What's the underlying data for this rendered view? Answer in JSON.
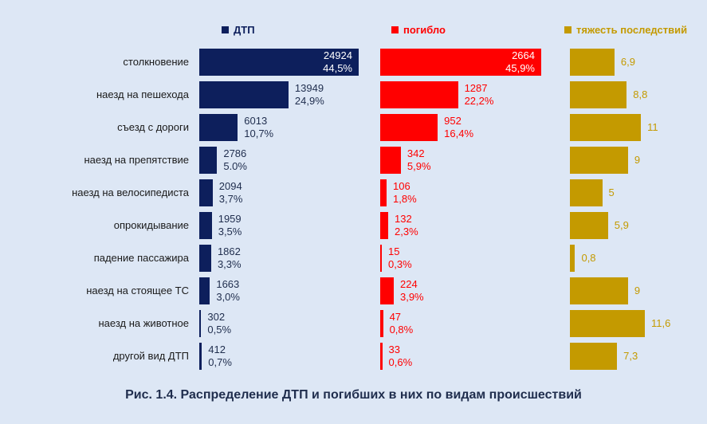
{
  "caption": "Рис. 1.4. Распределение ДТП и погибших в них по видам происшествий",
  "chart_data": {
    "type": "bar",
    "orientation": "horizontal",
    "categories": [
      "столкновение",
      "наезд на пешехода",
      "съезд с дороги",
      "наезд на препятствие",
      "наезд на велосипедиста",
      "опрокидывание",
      "падение пассажира",
      "наезд на стоящее ТС",
      "наезд на животное",
      "другой вид ДТП"
    ],
    "series": [
      {
        "name": "ДТП",
        "color": "#0d1f5c",
        "values": [
          24924,
          13949,
          6013,
          2786,
          2094,
          1959,
          1862,
          1663,
          302,
          412
        ],
        "percents": [
          "44,5%",
          "24,9%",
          "10,7%",
          "5.0%",
          "3,7%",
          "3,5%",
          "3,3%",
          "3,0%",
          "0,5%",
          "0,7%"
        ]
      },
      {
        "name": "погибло",
        "color": "#ff0000",
        "values": [
          2664,
          1287,
          952,
          342,
          106,
          132,
          15,
          224,
          47,
          33
        ],
        "percents": [
          "45,9%",
          "22,2%",
          "16,4%",
          "5,9%",
          "1,8%",
          "2,3%",
          "0,3%",
          "3,9%",
          "0,8%",
          "0,6%"
        ]
      },
      {
        "name": "тяжесть последствий",
        "color": "#c49a00",
        "values": [
          6.9,
          8.8,
          11,
          9,
          5,
          5.9,
          0.8,
          9,
          11.6,
          7.3
        ],
        "labels": [
          "6,9",
          "8,8",
          "11",
          "9",
          "5",
          "5,9",
          "0,8",
          "9",
          "11,6",
          "7,3"
        ]
      }
    ],
    "legend_position": "top",
    "grid": false
  }
}
